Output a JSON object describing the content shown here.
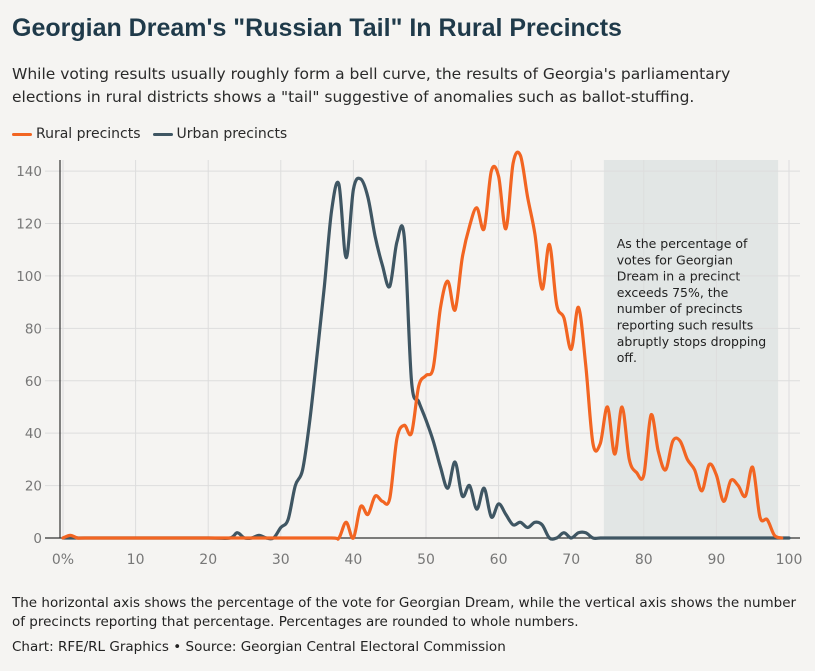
{
  "header": {
    "title": "Georgian Dream's \"Russian Tail\" In Rural Precincts",
    "subtitle": "While voting results usually roughly form a bell curve, the results of Georgia's parliamentary elections in rural districts shows a \"tail\" suggestive of anomalies such as ballot-stuffing."
  },
  "footer": {
    "note": "The horizontal axis shows the percentage of the vote for Georgian Dream, while the vertical axis shows the number of precincts reporting that percentage. Percentages are rounded to whole numbers.",
    "credit": "Chart: RFE/RL Graphics • Source: Georgian Central Electoral Commission"
  },
  "colors": {
    "rural": "#f26522",
    "urban": "#3f5663",
    "shade": "#e2e6e5",
    "grid": "#dddddd",
    "axis_text": "#777777"
  },
  "chart_data": {
    "type": "line",
    "xlim": [
      0,
      100
    ],
    "ylim": [
      0,
      145
    ],
    "x_ticks": [
      0,
      10,
      20,
      30,
      40,
      50,
      60,
      70,
      80,
      90,
      100
    ],
    "x_tick_labels": [
      "0%",
      "10",
      "20",
      "30",
      "40",
      "50",
      "60",
      "70",
      "80",
      "90",
      "100"
    ],
    "y_ticks": [
      0,
      20,
      40,
      60,
      80,
      100,
      120,
      140
    ],
    "grid": true,
    "legend_position": "top-left",
    "shaded_region": {
      "x": [
        74.5,
        98.5
      ]
    },
    "annotation": {
      "x": 76,
      "text_lines": [
        "As the percentage of",
        "votes for Georgian",
        "Dream in a precinct",
        "exceeds 75%, the",
        "number of precincts",
        "reporting such results",
        "abruptly stops dropping",
        "off."
      ]
    },
    "series": [
      {
        "name": "Rural precincts",
        "key": "rural",
        "x": [
          0,
          1,
          2,
          3,
          10,
          20,
          30,
          37,
          38,
          39,
          40,
          41,
          42,
          43,
          44,
          45,
          46,
          47,
          48,
          49,
          50,
          51,
          52,
          53,
          54,
          55,
          56,
          57,
          58,
          59,
          60,
          61,
          62,
          63,
          64,
          65,
          66,
          67,
          68,
          69,
          70,
          71,
          72,
          73,
          74,
          75,
          76,
          77,
          78,
          79,
          80,
          81,
          82,
          83,
          84,
          85,
          86,
          87,
          88,
          89,
          90,
          91,
          92,
          93,
          94,
          95,
          96,
          97,
          98,
          99
        ],
        "values": [
          0,
          1,
          0,
          0,
          0,
          0,
          0,
          0,
          0,
          6,
          0,
          12,
          9,
          16,
          14,
          15,
          38,
          43,
          40,
          58,
          62,
          65,
          88,
          98,
          87,
          107,
          119,
          126,
          118,
          140,
          138,
          118,
          143,
          146,
          130,
          116,
          95,
          112,
          89,
          84,
          72,
          88,
          66,
          36,
          36,
          50,
          32,
          50,
          30,
          25,
          24,
          47,
          33,
          26,
          37,
          37,
          30,
          26,
          18,
          28,
          24,
          14,
          22,
          20,
          16,
          27,
          8,
          7,
          1,
          0
        ]
      },
      {
        "name": "Urban precincts",
        "key": "urban",
        "x": [
          0,
          10,
          20,
          23,
          24,
          25,
          26,
          27,
          28,
          29,
          30,
          31,
          32,
          33,
          34,
          35,
          36,
          37,
          38,
          39,
          40,
          41,
          42,
          43,
          44,
          45,
          46,
          47,
          48,
          49,
          50,
          51,
          52,
          53,
          54,
          55,
          56,
          57,
          58,
          59,
          60,
          61,
          62,
          63,
          64,
          65,
          66,
          67,
          68,
          69,
          70,
          71,
          72,
          73,
          74,
          75,
          76,
          80,
          90,
          100
        ],
        "values": [
          0,
          0,
          0,
          0,
          2,
          0,
          0,
          1,
          0,
          0,
          4,
          7,
          20,
          26,
          45,
          70,
          96,
          125,
          135,
          107,
          133,
          137,
          130,
          115,
          104,
          96,
          113,
          115,
          60,
          52,
          45,
          37,
          27,
          19,
          29,
          16,
          20,
          11,
          19,
          8,
          13,
          9,
          5,
          6,
          4,
          6,
          5,
          0,
          0,
          2,
          0,
          2,
          2,
          0,
          0,
          0,
          0,
          0,
          0,
          0
        ]
      }
    ]
  }
}
